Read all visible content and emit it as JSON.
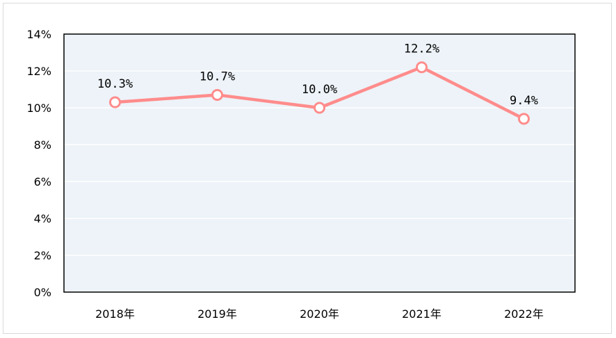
{
  "chart_data": {
    "type": "line",
    "title": "",
    "xlabel": "",
    "ylabel": "",
    "categories": [
      "2018年",
      "2019年",
      "2020年",
      "2021年",
      "2022年"
    ],
    "series": [
      {
        "values": [
          10.3,
          10.7,
          10.0,
          12.2,
          9.4
        ],
        "data_labels": [
          "10.3%",
          "10.7%",
          "10.0%",
          "12.2%",
          "9.4%"
        ]
      }
    ],
    "ylim": [
      0,
      14
    ],
    "y_ticks": [
      0,
      2,
      4,
      6,
      8,
      10,
      12,
      14
    ],
    "y_tick_labels": [
      "0%",
      "2%",
      "4%",
      "6%",
      "8%",
      "10%",
      "12%",
      "14%"
    ],
    "grid": true,
    "legend": false,
    "colors": {
      "line": "#FF8C8C",
      "marker_fill": "#FFFFFF",
      "plot_background": "#EDF3F8",
      "gridline": "#FFFFFF",
      "axis_border": "#000000"
    }
  }
}
